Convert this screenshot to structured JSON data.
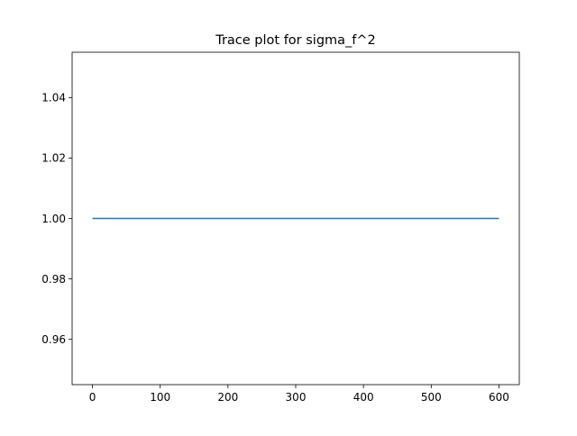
{
  "chart_data": {
    "type": "line",
    "title": "Trace plot for sigma_f^2",
    "xlabel": "",
    "ylabel": "",
    "xlim": [
      -30,
      630
    ],
    "ylim": [
      0.945,
      1.055
    ],
    "x_ticks": [
      0,
      100,
      200,
      300,
      400,
      500,
      600
    ],
    "x_tick_labels": [
      "0",
      "100",
      "200",
      "300",
      "400",
      "500",
      "600"
    ],
    "y_ticks": [
      0.96,
      0.98,
      1.0,
      1.02,
      1.04
    ],
    "y_tick_labels": [
      "0.96",
      "0.98",
      "1.00",
      "1.02",
      "1.04"
    ],
    "grid": false,
    "legend": "none",
    "series": [
      {
        "color": "#1f77b4",
        "x": [
          0,
          600
        ],
        "y": [
          1.0,
          1.0
        ]
      }
    ]
  }
}
